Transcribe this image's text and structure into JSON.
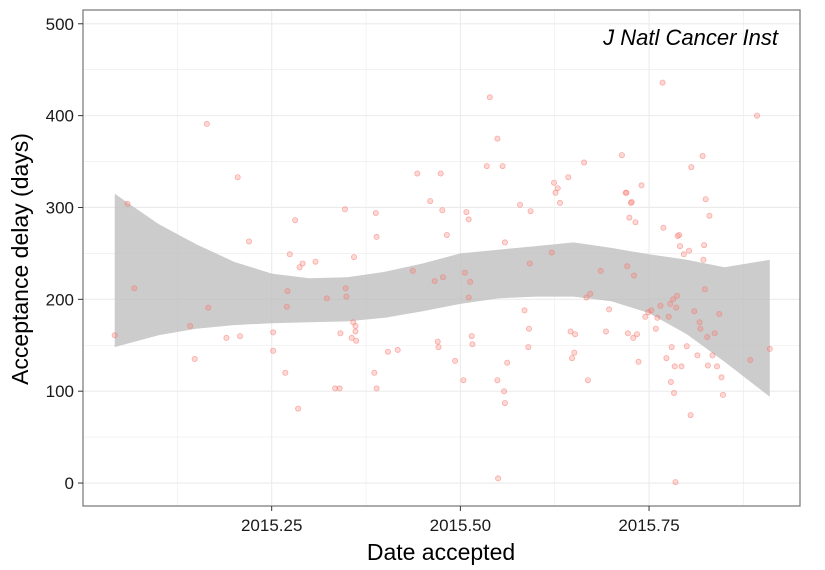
{
  "chart_data": {
    "type": "scatter",
    "title": "",
    "annotation": "J Natl Cancer Inst",
    "xlabel": "Date accepted",
    "ylabel": "Acceptance delay (days)",
    "xlim": [
      2015.0,
      2015.95
    ],
    "ylim": [
      -25,
      515
    ],
    "x_ticks": [
      2015.25,
      2015.5,
      2015.75
    ],
    "x_tick_labels": [
      "2015.25",
      "2015.50",
      "2015.75"
    ],
    "y_ticks": [
      0,
      100,
      200,
      300,
      400,
      500
    ],
    "y_tick_labels": [
      "0",
      "100",
      "200",
      "300",
      "400",
      "500"
    ],
    "x_minor_ticks": [
      2015.125,
      2015.375,
      2015.625,
      2015.875
    ],
    "y_minor_ticks": [
      50,
      150,
      250,
      350,
      450
    ],
    "grid": true,
    "colors": {
      "points": "#f8766d",
      "ribbon": "#bebebe",
      "panel_border": "#7f7f7f",
      "grid": "#ebebeb"
    },
    "points": [
      [
        2015.042,
        161
      ],
      [
        2015.059,
        304
      ],
      [
        2015.068,
        212
      ],
      [
        2015.142,
        171
      ],
      [
        2015.148,
        135
      ],
      [
        2015.164,
        391
      ],
      [
        2015.166,
        191
      ],
      [
        2015.19,
        158
      ],
      [
        2015.205,
        333
      ],
      [
        2015.208,
        160
      ],
      [
        2015.22,
        263
      ],
      [
        2015.252,
        164
      ],
      [
        2015.252,
        144
      ],
      [
        2015.268,
        120
      ],
      [
        2015.27,
        192
      ],
      [
        2015.271,
        209
      ],
      [
        2015.274,
        249
      ],
      [
        2015.281,
        286
      ],
      [
        2015.285,
        81
      ],
      [
        2015.287,
        235
      ],
      [
        2015.291,
        239
      ],
      [
        2015.308,
        241
      ],
      [
        2015.323,
        201
      ],
      [
        2015.334,
        103
      ],
      [
        2015.34,
        103
      ],
      [
        2015.341,
        163
      ],
      [
        2015.347,
        298
      ],
      [
        2015.348,
        212
      ],
      [
        2015.349,
        203
      ],
      [
        2015.356,
        158
      ],
      [
        2015.358,
        175
      ],
      [
        2015.359,
        246
      ],
      [
        2015.361,
        165
      ],
      [
        2015.361,
        171
      ],
      [
        2015.362,
        155
      ],
      [
        2015.386,
        120
      ],
      [
        2015.388,
        294
      ],
      [
        2015.389,
        268
      ],
      [
        2015.389,
        103
      ],
      [
        2015.404,
        143
      ],
      [
        2015.417,
        145
      ],
      [
        2015.437,
        231
      ],
      [
        2015.443,
        337
      ],
      [
        2015.46,
        307
      ],
      [
        2015.466,
        220
      ],
      [
        2015.47,
        154
      ],
      [
        2015.471,
        148
      ],
      [
        2015.474,
        337
      ],
      [
        2015.476,
        297
      ],
      [
        2015.477,
        224
      ],
      [
        2015.482,
        270
      ],
      [
        2015.493,
        133
      ],
      [
        2015.504,
        112
      ],
      [
        2015.506,
        229
      ],
      [
        2015.508,
        295
      ],
      [
        2015.511,
        202
      ],
      [
        2015.511,
        287
      ],
      [
        2015.513,
        219
      ],
      [
        2015.515,
        160
      ],
      [
        2015.516,
        151
      ],
      [
        2015.535,
        345
      ],
      [
        2015.539,
        420
      ],
      [
        2015.549,
        112
      ],
      [
        2015.549,
        375
      ],
      [
        2015.556,
        345
      ],
      [
        2015.558,
        100
      ],
      [
        2015.559,
        262
      ],
      [
        2015.562,
        131
      ],
      [
        2015.559,
        87
      ],
      [
        2015.55,
        5
      ],
      [
        2015.579,
        303
      ],
      [
        2015.585,
        188
      ],
      [
        2015.59,
        148
      ],
      [
        2015.591,
        168
      ],
      [
        2015.592,
        239
      ],
      [
        2015.593,
        296
      ],
      [
        2015.621,
        251
      ],
      [
        2015.624,
        327
      ],
      [
        2015.626,
        316
      ],
      [
        2015.629,
        321
      ],
      [
        2015.632,
        305
      ],
      [
        2015.643,
        333
      ],
      [
        2015.646,
        165
      ],
      [
        2015.648,
        136
      ],
      [
        2015.651,
        142
      ],
      [
        2015.652,
        162
      ],
      [
        2015.664,
        349
      ],
      [
        2015.667,
        202
      ],
      [
        2015.669,
        112
      ],
      [
        2015.672,
        206
      ],
      [
        2015.686,
        231
      ],
      [
        2015.693,
        165
      ],
      [
        2015.697,
        189
      ],
      [
        2015.714,
        357
      ],
      [
        2015.719,
        316
      ],
      [
        2015.72,
        316
      ],
      [
        2015.721,
        236
      ],
      [
        2015.722,
        163
      ],
      [
        2015.724,
        289
      ],
      [
        2015.726,
        305
      ],
      [
        2015.727,
        306
      ],
      [
        2015.729,
        158
      ],
      [
        2015.73,
        226
      ],
      [
        2015.732,
        284
      ],
      [
        2015.734,
        162
      ],
      [
        2015.736,
        132
      ],
      [
        2015.74,
        324
      ],
      [
        2015.745,
        181
      ],
      [
        2015.749,
        186
      ],
      [
        2015.753,
        188
      ],
      [
        2015.759,
        168
      ],
      [
        2015.761,
        180
      ],
      [
        2015.765,
        193
      ],
      [
        2015.768,
        436
      ],
      [
        2015.769,
        278
      ],
      [
        2015.773,
        136
      ],
      [
        2015.776,
        181
      ],
      [
        2015.778,
        195
      ],
      [
        2015.779,
        110
      ],
      [
        2015.78,
        148
      ],
      [
        2015.782,
        200
      ],
      [
        2015.783,
        98
      ],
      [
        2015.784,
        127
      ],
      [
        2015.785,
        1
      ],
      [
        2015.786,
        191
      ],
      [
        2015.787,
        204
      ],
      [
        2015.788,
        269
      ],
      [
        2015.79,
        270
      ],
      [
        2015.791,
        258
      ],
      [
        2015.793,
        127
      ],
      [
        2015.796,
        249
      ],
      [
        2015.8,
        149
      ],
      [
        2015.803,
        253
      ],
      [
        2015.805,
        74
      ],
      [
        2015.806,
        344
      ],
      [
        2015.81,
        187
      ],
      [
        2015.814,
        139
      ],
      [
        2015.817,
        175
      ],
      [
        2015.818,
        168
      ],
      [
        2015.821,
        356
      ],
      [
        2015.822,
        243
      ],
      [
        2015.823,
        259
      ],
      [
        2015.824,
        211
      ],
      [
        2015.825,
        309
      ],
      [
        2015.827,
        159
      ],
      [
        2015.828,
        128
      ],
      [
        2015.83,
        291
      ],
      [
        2015.834,
        139
      ],
      [
        2015.837,
        163
      ],
      [
        2015.84,
        127
      ],
      [
        2015.843,
        184
      ],
      [
        2015.846,
        115
      ],
      [
        2015.848,
        96
      ],
      [
        2015.884,
        134
      ],
      [
        2015.893,
        400
      ],
      [
        2015.91,
        146
      ]
    ],
    "smooth": {
      "x": [
        2015.042,
        2015.1,
        2015.15,
        2015.2,
        2015.25,
        2015.3,
        2015.35,
        2015.4,
        2015.45,
        2015.5,
        2015.55,
        2015.6,
        2015.65,
        2015.7,
        2015.75,
        2015.8,
        2015.85,
        2015.91
      ],
      "lower": [
        148,
        161,
        168,
        172,
        174,
        175,
        176,
        180,
        187,
        195,
        201,
        203,
        203,
        198,
        185,
        162,
        132,
        94
      ],
      "upper": [
        315,
        282,
        260,
        241,
        228,
        223,
        224,
        230,
        239,
        250,
        254,
        258,
        262,
        256,
        249,
        243,
        235,
        243
      ]
    }
  }
}
